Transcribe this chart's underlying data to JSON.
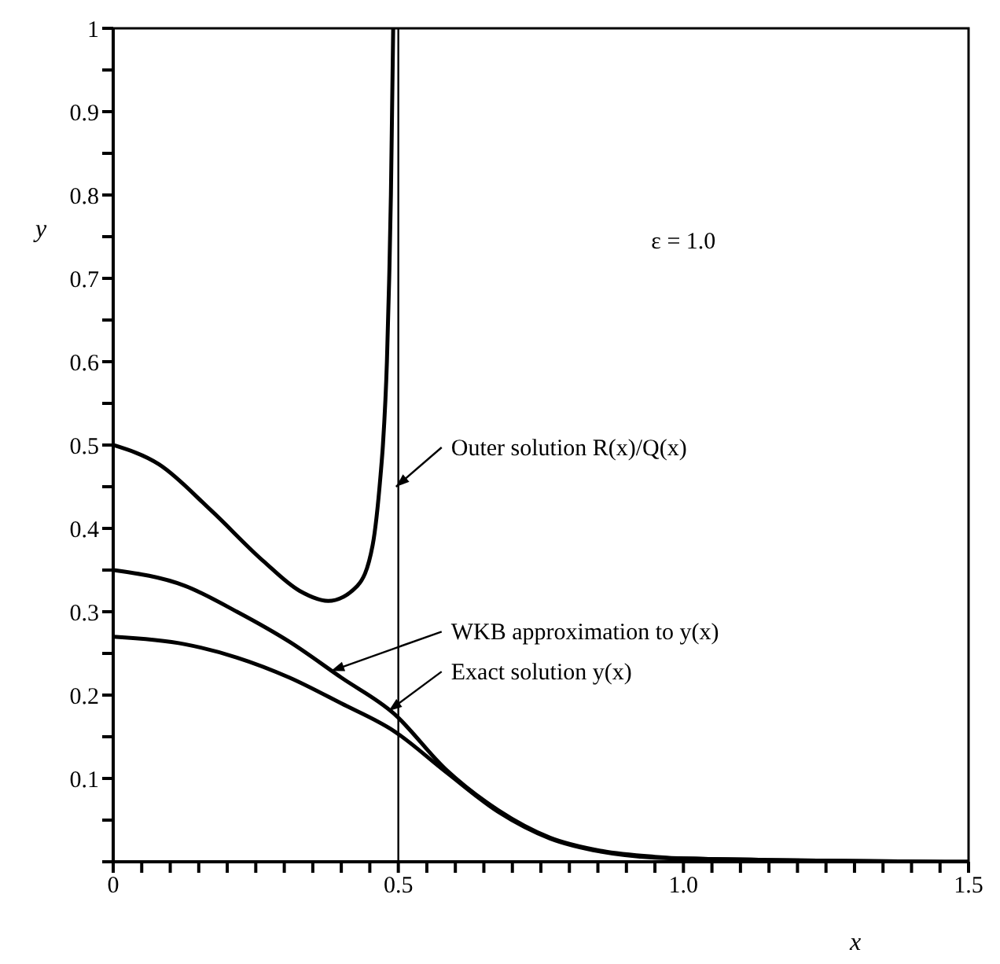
{
  "chart_data": {
    "type": "line",
    "xlabel": "x",
    "ylabel": "y",
    "xlim": [
      0,
      1.5
    ],
    "ylim": [
      0,
      1
    ],
    "xticks": [
      0,
      {
        "value": 0.05,
        "label": null
      },
      {
        "value": 0.1,
        "label": null
      },
      {
        "value": 0.15,
        "label": null
      },
      {
        "value": 0.2,
        "label": null
      },
      {
        "value": 0.25,
        "label": null
      },
      {
        "value": 0.3,
        "label": null
      },
      {
        "value": 0.35,
        "label": null
      },
      {
        "value": 0.4,
        "label": null
      },
      {
        "value": 0.45,
        "label": null
      },
      0.5,
      {
        "value": 0.55,
        "label": null
      },
      {
        "value": 0.6,
        "label": null
      },
      {
        "value": 0.65,
        "label": null
      },
      {
        "value": 0.7,
        "label": null
      },
      {
        "value": 0.75,
        "label": null
      },
      {
        "value": 0.8,
        "label": null
      },
      {
        "value": 0.85,
        "label": null
      },
      {
        "value": 0.9,
        "label": null
      },
      {
        "value": 0.95,
        "label": null
      },
      {
        "value": 1.0,
        "label": "1.0"
      },
      {
        "value": 1.05,
        "label": null
      },
      {
        "value": 1.1,
        "label": null
      },
      {
        "value": 1.15,
        "label": null
      },
      {
        "value": 1.2,
        "label": null
      },
      {
        "value": 1.25,
        "label": null
      },
      {
        "value": 1.3,
        "label": null
      },
      {
        "value": 1.35,
        "label": null
      },
      {
        "value": 1.4,
        "label": null
      },
      {
        "value": 1.45,
        "label": null
      },
      1.5
    ],
    "yticks": [
      {
        "value": 0,
        "label": null
      },
      {
        "value": 0.05,
        "label": null
      },
      0.1,
      {
        "value": 0.15,
        "label": null
      },
      0.2,
      {
        "value": 0.25,
        "label": null
      },
      0.3,
      {
        "value": 0.35,
        "label": null
      },
      0.4,
      {
        "value": 0.45,
        "label": null
      },
      0.5,
      {
        "value": 0.55,
        "label": null
      },
      0.6,
      {
        "value": 0.65,
        "label": null
      },
      0.7,
      {
        "value": 0.75,
        "label": null
      },
      0.8,
      {
        "value": 0.85,
        "label": null
      },
      0.9,
      {
        "value": 0.95,
        "label": null
      },
      1
    ],
    "marker": "none",
    "line_style": "solid",
    "series": [
      {
        "color": "#000000",
        "x": [
          0,
          0.08,
          0.171,
          0.263,
          0.327,
          0.377,
          0.428,
          0.455,
          0.469,
          0.473,
          0.48,
          0.484,
          0.487,
          0.489,
          0.491
        ],
        "values": [
          0.5,
          0.477,
          0.422,
          0.361,
          0.325,
          0.313,
          0.331,
          0.38,
          0.465,
          0.5,
          0.6,
          0.7,
          0.8,
          0.9,
          1.0
        ]
      },
      {
        "color": "#000000",
        "x": [
          0,
          0.126,
          0.217,
          0.309,
          0.4,
          0.492,
          0.583,
          0.675,
          0.766,
          0.857,
          0.95,
          1.0,
          1.5
        ],
        "values": [
          0.35,
          0.331,
          0.3,
          0.264,
          0.221,
          0.178,
          0.111,
          0.062,
          0.029,
          0.013,
          0.006,
          0.004,
          0
        ]
      },
      {
        "color": "#000000",
        "x": [
          0,
          0.126,
          0.217,
          0.309,
          0.4,
          0.492,
          0.583,
          0.675,
          0.766,
          0.857,
          0.95,
          1.0,
          1.5
        ],
        "values": [
          0.27,
          0.261,
          0.245,
          0.221,
          0.19,
          0.157,
          0.108,
          0.06,
          0.028,
          0.012,
          0.005,
          0.004,
          0
        ]
      }
    ],
    "ref_lines": [
      {
        "axis": "x",
        "value": 0.5,
        "color": "#000000"
      }
    ],
    "annotations": [
      "ε = 1.0",
      {
        "text": "Outer solution R(x)/Q(x)",
        "x": 0.496,
        "y": 0.45
      },
      {
        "text": "WKB approximation to y(x)",
        "x": 0.382,
        "y": 0.229
      },
      {
        "text": "Exact solution y(x)",
        "x": 0.483,
        "y": 0.181
      }
    ]
  }
}
